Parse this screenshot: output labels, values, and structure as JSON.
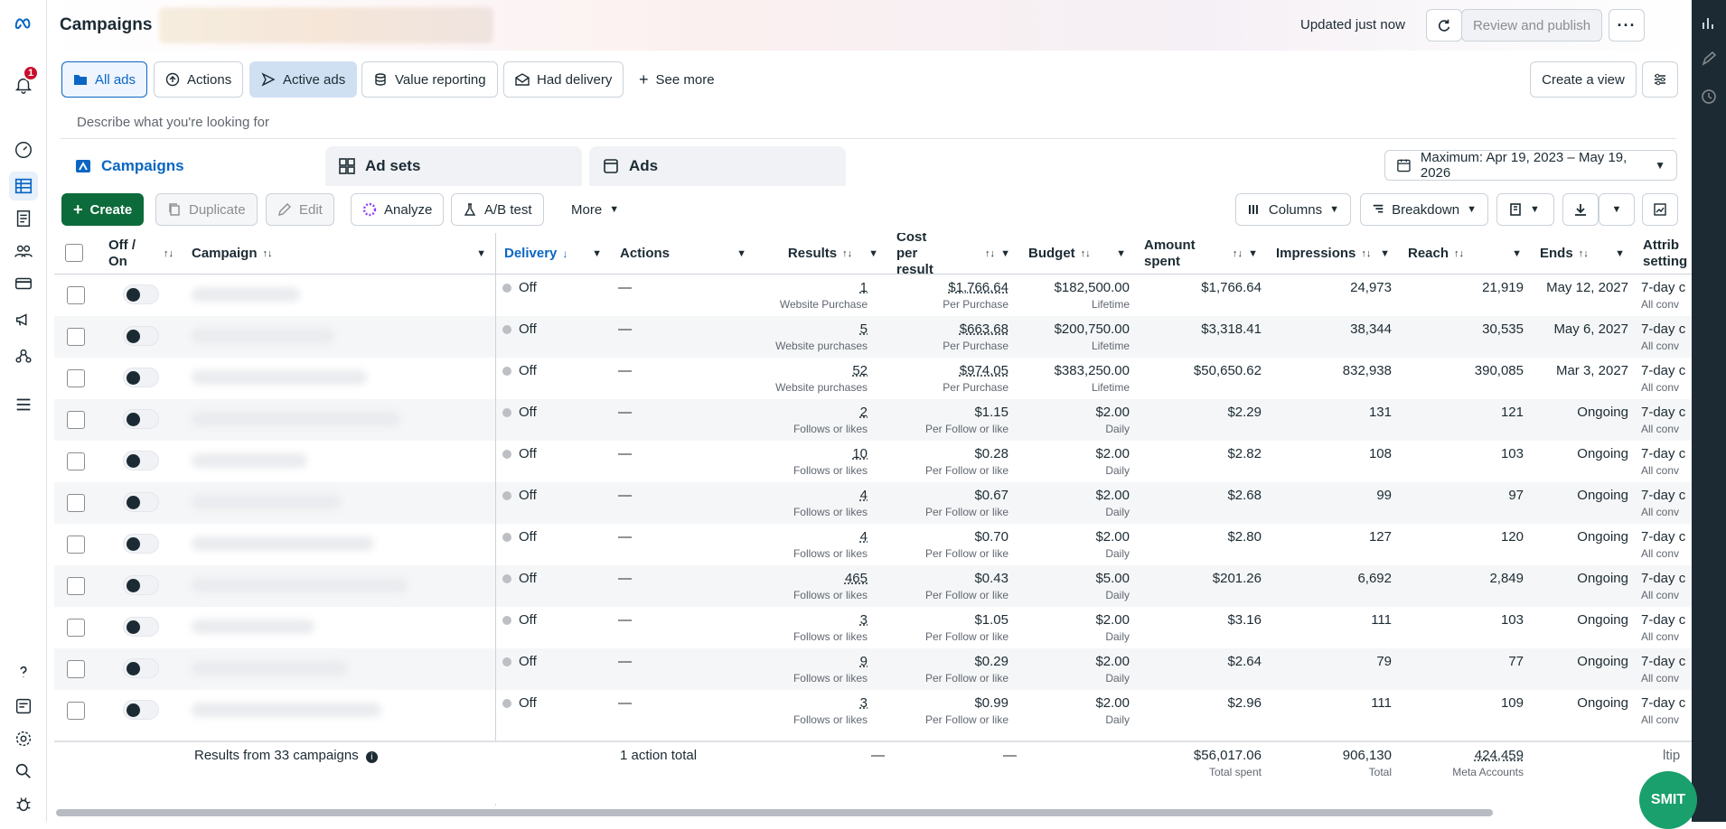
{
  "header": {
    "title": "Campaigns",
    "updated": "Updated just now",
    "review_label": "Review and publish",
    "notification_count": "1"
  },
  "views": {
    "buttons": [
      "All ads",
      "Actions",
      "Active ads",
      "Value reporting",
      "Had delivery",
      "See more"
    ],
    "create_view": "Create a view"
  },
  "search": {
    "placeholder": "Describe what you're looking for"
  },
  "tabs": {
    "campaigns": "Campaigns",
    "adsets": "Ad sets",
    "ads": "Ads"
  },
  "date_range": "Maximum: Apr 19, 2023 – May 19, 2026",
  "actions": {
    "create": "Create",
    "duplicate": "Duplicate",
    "edit": "Edit",
    "analyze": "Analyze",
    "ab_test": "A/B test",
    "more": "More",
    "columns": "Columns",
    "breakdown": "Breakdown"
  },
  "table": {
    "headers": {
      "offon": "Off / On",
      "campaign": "Campaign",
      "delivery": "Delivery",
      "actions": "Actions",
      "results": "Results",
      "cpr": "Cost per result",
      "budget": "Budget",
      "amount": "Amount spent",
      "impressions": "Impressions",
      "reach": "Reach",
      "ends": "Ends",
      "attrib": "Attrib setting"
    },
    "rows": [
      {
        "delivery": "Off",
        "actions": "—",
        "results": "1",
        "results_sub": "Website Purchase",
        "cpr": "$1,766.64",
        "cpr_sub": "Per Purchase",
        "budget": "$182,500.00",
        "budget_sub": "Lifetime",
        "amount": "$1,766.64",
        "impressions": "24,973",
        "reach": "21,919",
        "ends": "May 12, 2027",
        "attrib": "7-day c",
        "attrib_sub": "All conv"
      },
      {
        "delivery": "Off",
        "actions": "—",
        "results": "5",
        "results_sub": "Website purchases",
        "cpr": "$663.68",
        "cpr_sub": "Per Purchase",
        "budget": "$200,750.00",
        "budget_sub": "Lifetime",
        "amount": "$3,318.41",
        "impressions": "38,344",
        "reach": "30,535",
        "ends": "May 6, 2027",
        "attrib": "7-day c",
        "attrib_sub": "All conv"
      },
      {
        "delivery": "Off",
        "actions": "—",
        "results": "52",
        "results_sub": "Website purchases",
        "cpr": "$974.05",
        "cpr_sub": "Per Purchase",
        "budget": "$383,250.00",
        "budget_sub": "Lifetime",
        "amount": "$50,650.62",
        "impressions": "832,938",
        "reach": "390,085",
        "ends": "Mar 3, 2027",
        "attrib": "7-day c",
        "attrib_sub": "All conv"
      },
      {
        "delivery": "Off",
        "actions": "—",
        "results": "2",
        "results_sub": "Follows or likes",
        "cpr": "$1.15",
        "cpr_sub": "Per Follow or like",
        "budget": "$2.00",
        "budget_sub": "Daily",
        "amount": "$2.29",
        "impressions": "131",
        "reach": "121",
        "ends": "Ongoing",
        "attrib": "7-day c",
        "attrib_sub": "All conv"
      },
      {
        "delivery": "Off",
        "actions": "—",
        "results": "10",
        "results_sub": "Follows or likes",
        "cpr": "$0.28",
        "cpr_sub": "Per Follow or like",
        "budget": "$2.00",
        "budget_sub": "Daily",
        "amount": "$2.82",
        "impressions": "108",
        "reach": "103",
        "ends": "Ongoing",
        "attrib": "7-day c",
        "attrib_sub": "All conv"
      },
      {
        "delivery": "Off",
        "actions": "—",
        "results": "4",
        "results_sub": "Follows or likes",
        "cpr": "$0.67",
        "cpr_sub": "Per Follow or like",
        "budget": "$2.00",
        "budget_sub": "Daily",
        "amount": "$2.68",
        "impressions": "99",
        "reach": "97",
        "ends": "Ongoing",
        "attrib": "7-day c",
        "attrib_sub": "All conv"
      },
      {
        "delivery": "Off",
        "actions": "—",
        "results": "4",
        "results_sub": "Follows or likes",
        "cpr": "$0.70",
        "cpr_sub": "Per Follow or like",
        "budget": "$2.00",
        "budget_sub": "Daily",
        "amount": "$2.80",
        "impressions": "127",
        "reach": "120",
        "ends": "Ongoing",
        "attrib": "7-day c",
        "attrib_sub": "All conv"
      },
      {
        "delivery": "Off",
        "actions": "—",
        "results": "465",
        "results_sub": "Follows or likes",
        "cpr": "$0.43",
        "cpr_sub": "Per Follow or like",
        "budget": "$5.00",
        "budget_sub": "Daily",
        "amount": "$201.26",
        "impressions": "6,692",
        "reach": "2,849",
        "ends": "Ongoing",
        "attrib": "7-day c",
        "attrib_sub": "All conv"
      },
      {
        "delivery": "Off",
        "actions": "—",
        "results": "3",
        "results_sub": "Follows or likes",
        "cpr": "$1.05",
        "cpr_sub": "Per Follow or like",
        "budget": "$2.00",
        "budget_sub": "Daily",
        "amount": "$3.16",
        "impressions": "111",
        "reach": "103",
        "ends": "Ongoing",
        "attrib": "7-day c",
        "attrib_sub": "All conv"
      },
      {
        "delivery": "Off",
        "actions": "—",
        "results": "9",
        "results_sub": "Follows or likes",
        "cpr": "$0.29",
        "cpr_sub": "Per Follow or like",
        "budget": "$2.00",
        "budget_sub": "Daily",
        "amount": "$2.64",
        "impressions": "79",
        "reach": "77",
        "ends": "Ongoing",
        "attrib": "7-day c",
        "attrib_sub": "All conv"
      },
      {
        "delivery": "Off",
        "actions": "—",
        "results": "3",
        "results_sub": "Follows or likes",
        "cpr": "$0.99",
        "cpr_sub": "Per Follow or like",
        "budget": "$2.00",
        "budget_sub": "Daily",
        "amount": "$2.96",
        "impressions": "111",
        "reach": "109",
        "ends": "Ongoing",
        "attrib": "7-day c",
        "attrib_sub": "All conv"
      }
    ]
  },
  "footer": {
    "results_from": "Results from 33 campaigns",
    "actions_total": "1 action total",
    "results": "—",
    "cpr": "—",
    "amount": "$56,017.06",
    "amount_sub": "Total spent",
    "impressions": "906,130",
    "impressions_sub": "Total",
    "reach": "424,459",
    "reach_sub": "Meta Accounts",
    "attrib": "ltip"
  },
  "widget": {
    "label": "SMIT"
  },
  "colors": {
    "accent": "#0a66c2",
    "create": "#0c6b3a",
    "badge": "#c8102e",
    "rail": "#1c2b33"
  }
}
